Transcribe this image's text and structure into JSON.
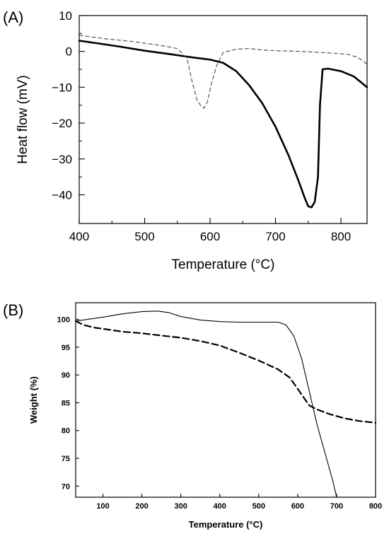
{
  "chart_data": [
    {
      "panel_label": "(A)",
      "type": "line",
      "xlabel": "Temperature (°C)",
      "ylabel": "Heat flow (mV)",
      "xlim": [
        400,
        840
      ],
      "ylim": [
        -48,
        10
      ],
      "xticks": [
        400,
        500,
        600,
        700,
        800
      ],
      "yticks": [
        10,
        0,
        -10,
        -20,
        -30,
        -40
      ],
      "grid": false,
      "series": [
        {
          "style": "solid",
          "color": "#000000",
          "x": [
            400,
            430,
            460,
            500,
            540,
            570,
            600,
            620,
            640,
            660,
            680,
            700,
            720,
            735,
            745,
            750,
            755,
            760,
            765,
            768,
            772,
            780,
            800,
            820,
            840
          ],
          "y": [
            3,
            2.2,
            1.4,
            0.2,
            -0.8,
            -1.6,
            -2.3,
            -3.2,
            -5.5,
            -9.5,
            -14.5,
            -21,
            -29,
            -36,
            -41,
            -43.2,
            -43.5,
            -42,
            -35,
            -15,
            -5,
            -4.8,
            -5.5,
            -7,
            -10
          ]
        },
        {
          "style": "dashed",
          "color": "#555555",
          "x": [
            400,
            440,
            480,
            520,
            550,
            565,
            572,
            580,
            587,
            591,
            596,
            602,
            610,
            620,
            640,
            660,
            680,
            700,
            740,
            780,
            810,
            825,
            835,
            840
          ],
          "y": [
            4.5,
            3.5,
            2.8,
            1.8,
            0.8,
            -2,
            -8,
            -13.5,
            -15.5,
            -15.8,
            -14,
            -9,
            -4,
            -0.3,
            0.6,
            0.8,
            0.4,
            0.2,
            0,
            -0.4,
            -0.8,
            -1.6,
            -2.8,
            -3.6
          ]
        }
      ]
    },
    {
      "panel_label": "(B)",
      "type": "line",
      "xlabel": "Temperature (°C)",
      "ylabel": "Weight (%)",
      "xlim": [
        30,
        800
      ],
      "ylim": [
        68,
        103
      ],
      "xticks": [
        100,
        200,
        300,
        400,
        500,
        600,
        700,
        800
      ],
      "yticks": [
        100,
        95,
        90,
        85,
        80,
        75,
        70
      ],
      "grid": false,
      "series": [
        {
          "style": "solid",
          "color": "#000000",
          "x": [
            30,
            60,
            100,
            150,
            200,
            240,
            270,
            300,
            350,
            400,
            450,
            500,
            550,
            570,
            590,
            610,
            630,
            650,
            670,
            690,
            700
          ],
          "y": [
            99.7,
            100,
            100.4,
            101,
            101.4,
            101.5,
            101.2,
            100.5,
            99.9,
            99.6,
            99.5,
            99.5,
            99.5,
            99,
            97,
            93,
            87,
            81,
            76,
            71,
            68
          ]
        },
        {
          "style": "dashed",
          "color": "#000000",
          "x": [
            30,
            50,
            80,
            100,
            150,
            200,
            250,
            300,
            350,
            400,
            450,
            500,
            550,
            580,
            600,
            615,
            630,
            650,
            680,
            720,
            760,
            800
          ],
          "y": [
            99.7,
            99,
            98.5,
            98.3,
            97.8,
            97.5,
            97.1,
            96.7,
            96.1,
            95.3,
            94,
            92.6,
            91,
            89.5,
            87.5,
            86,
            84.5,
            83.8,
            83,
            82.2,
            81.7,
            81.4
          ]
        }
      ]
    }
  ]
}
